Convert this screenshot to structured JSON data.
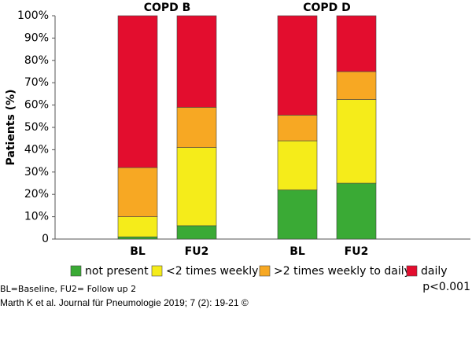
{
  "chart_data": {
    "type": "stacked_bar",
    "groups": [
      "COPD B",
      "COPD D"
    ],
    "categories": [
      "BL",
      "FU2",
      "BL",
      "FU2"
    ],
    "y_label": "Patients (%)",
    "ylim": [
      0,
      100
    ],
    "yticks": [
      0,
      {
        "value": 10,
        "label": "10%"
      },
      {
        "value": 20,
        "label": "20%"
      },
      {
        "value": 30,
        "label": "30%"
      },
      {
        "value": 40,
        "label": "40%"
      },
      {
        "value": 50,
        "label": "50%"
      },
      {
        "value": 60,
        "label": "60%"
      },
      {
        "value": 70,
        "label": "70%"
      },
      {
        "value": 80,
        "label": "80%"
      },
      {
        "value": 90,
        "label": "90%"
      },
      {
        "value": 100,
        "label": "100%"
      }
    ],
    "series": [
      {
        "name": "not present",
        "color": "#3aaa35",
        "values": [
          1,
          6,
          22,
          25
        ]
      },
      {
        "name": "<2 times weekly",
        "color": "#f5ec1a",
        "values": [
          9,
          35,
          22,
          37.5
        ]
      },
      {
        "name": ">2 times weekly to daily",
        "color": "#f7a823",
        "values": [
          22,
          18,
          11.5,
          12.5
        ]
      },
      {
        "name": "daily",
        "color": "#e30d2e",
        "values": [
          68,
          41,
          44.5,
          25
        ]
      }
    ],
    "footnote": "BL=Baseline, FU2= Follow up 2",
    "p_value": "p<0.001",
    "source": "Marth K et al. Journal für Pneumologie 2019; 7 (2): 19-21 ©"
  }
}
